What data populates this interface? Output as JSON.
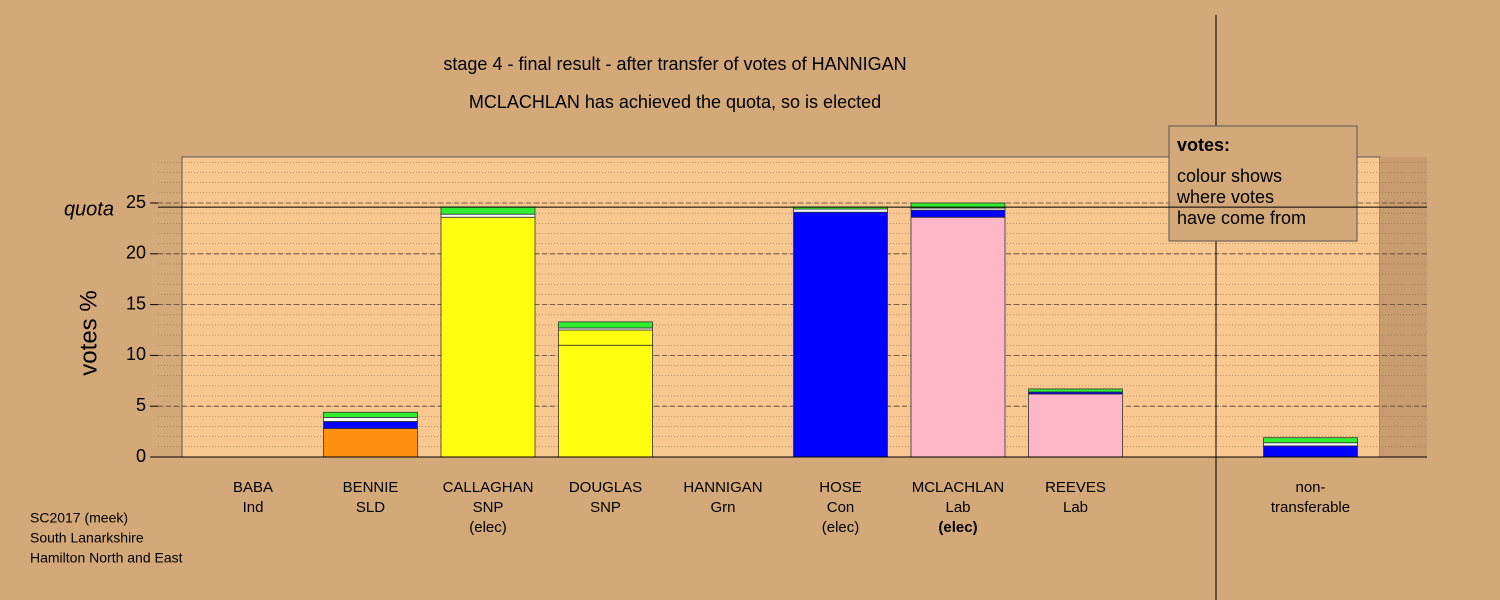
{
  "chart_data": {
    "type": "bar",
    "stacked": true,
    "title": "stage 4 - final result - after transfer of votes of HANNIGAN",
    "subtitle": "MCLACHLAN has achieved the quota, so is elected",
    "y_label": "votes %",
    "quota_label": "quota",
    "quota": 24.6,
    "ylim": [
      0,
      29.5
    ],
    "yticks": [
      0,
      5,
      10,
      15,
      20,
      25
    ],
    "minor_step": 1,
    "grid": true,
    "categories": [
      [
        "BABA",
        "Ind"
      ],
      [
        "BENNIE",
        "SLD"
      ],
      [
        "CALLAGHAN",
        "SNP",
        "(elec)"
      ],
      [
        "DOUGLAS",
        "SNP"
      ],
      [
        "HANNIGAN",
        "Grn"
      ],
      [
        "HOSE",
        "Con",
        "(elec)"
      ],
      [
        "MCLACHLAN",
        "Lab",
        "(elec)"
      ],
      [
        "REEVES",
        "Lab"
      ],
      null,
      [
        "non-",
        "transferable"
      ]
    ],
    "emphasis_index": 6,
    "series": [
      {
        "color": "#ff9010",
        "values": [
          0,
          2.8,
          0,
          0,
          0,
          0,
          0,
          0,
          null,
          0
        ]
      },
      {
        "color": "#ffff10",
        "values": [
          0,
          0,
          23.6,
          11.0,
          0,
          0,
          0,
          0,
          null,
          0
        ]
      },
      {
        "color": "#ffff10",
        "values": [
          0,
          0,
          0,
          1.5,
          0,
          0,
          0,
          0,
          null,
          0
        ]
      },
      {
        "color": "#ffb6c8",
        "values": [
          0,
          0,
          0,
          0,
          0,
          0,
          23.6,
          6.2,
          null,
          0
        ]
      },
      {
        "color": "#0000ff",
        "values": [
          0,
          0.7,
          0,
          0,
          0,
          24.1,
          0.7,
          0.2,
          null,
          1.1
        ]
      },
      {
        "color": "#ffffff",
        "values": [
          0,
          0.4,
          0.3,
          0.2,
          0,
          0.3,
          0.2,
          0,
          null,
          0.3
        ]
      },
      {
        "color": "#30ee30",
        "values": [
          0,
          0.5,
          0.7,
          0.6,
          0,
          0.2,
          0.5,
          0.3,
          null,
          0.5
        ]
      }
    ],
    "note": {
      "heading": "votes:",
      "lines": [
        "colour shows",
        "where votes",
        "have come from"
      ]
    },
    "footer": [
      "SC2017 (meek)",
      "South Lanarkshire",
      "Hamilton North and East"
    ]
  }
}
